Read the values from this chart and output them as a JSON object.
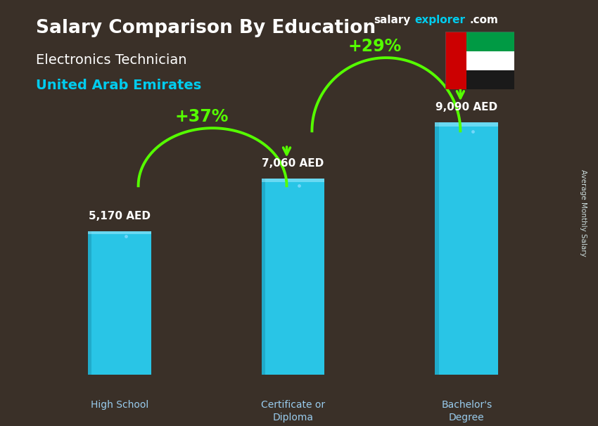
{
  "title_main": "Salary Comparison By Education",
  "subtitle1": "Electronics Technician",
  "subtitle2": "United Arab Emirates",
  "categories": [
    "High School",
    "Certificate or\nDiploma",
    "Bachelor's\nDegree"
  ],
  "values": [
    5170,
    7060,
    9090
  ],
  "value_labels": [
    "5,170 AED",
    "7,060 AED",
    "9,090 AED"
  ],
  "bar_color": "#29c5e6",
  "bar_color_light": "#4dd8f0",
  "bar_color_dark": "#1a9ab8",
  "pct_changes": [
    "+37%",
    "+29%"
  ],
  "pct_color": "#55ff00",
  "bg_color": "#3a3028",
  "text_color_white": "#ffffff",
  "text_color_cyan": "#00ccee",
  "watermark_salary": "salary",
  "watermark_explorer": "explorer",
  "watermark_com": ".com",
  "side_label": "Average Monthly Salary",
  "ylim_max": 11500,
  "bar_width": 0.12,
  "x_positions": [
    0.17,
    0.5,
    0.83
  ],
  "flag_colors": {
    "green": "#009a44",
    "white": "#ffffff",
    "black": "#1a1a1a",
    "red": "#cc0001"
  }
}
